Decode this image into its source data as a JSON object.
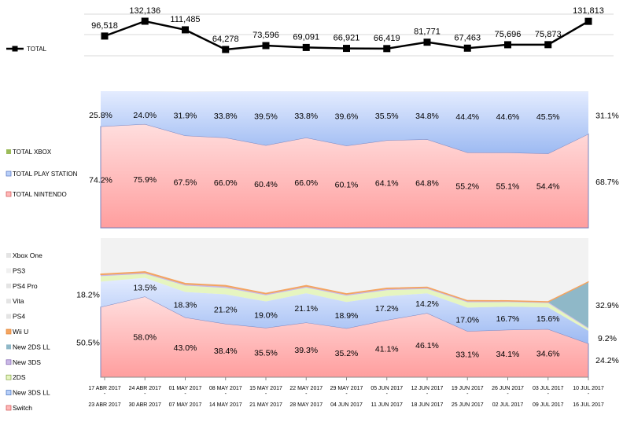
{
  "chart_data": [
    {
      "type": "line",
      "legend": [
        "TOTAL"
      ],
      "legend_placement": "left",
      "grid": true,
      "categories": [
        "17 ABR 2017 - 23 ABR 2017",
        "24 ABR 2017 - 30 ABR 2017",
        "01 MAY 2017 - 07 MAY 2017",
        "08 MAY 2017 - 14 MAY 2017",
        "15 MAY 2017 - 21 MAY 2017",
        "22 MAY 2017 - 28 MAY 2017",
        "29 MAY 2017 - 04 JUN 2017",
        "05 JUN 2017 - 11 JUN 2017",
        "12 JUN 2017 - 18 JUN 2017",
        "19 JUN 2017 - 25 JUN 2017",
        "26 JUN 2017 - 02 JUL 2017",
        "03 JUL 2017 - 09 JUL 2017",
        "10 JUL 2017 - 16 JUL 2017"
      ],
      "series": [
        {
          "name": "TOTAL",
          "values": [
            96518,
            132136,
            111485,
            64278,
            73596,
            69091,
            66921,
            66419,
            81771,
            67463,
            75696,
            75873,
            131813
          ],
          "labels": [
            "96,518",
            "132,136",
            "111,485",
            "64,278",
            "73,596",
            "69,091",
            "66,921",
            "66,419",
            "81,771",
            "67,463",
            "75,696",
            "75,873",
            "131,813"
          ],
          "color": "#000000"
        }
      ]
    },
    {
      "type": "area",
      "stacked": true,
      "unit": "%",
      "legend_placement": "left",
      "ylim": [
        0,
        100
      ],
      "series": [
        {
          "name": "TOTAL NINTENDO",
          "values": [
            74.2,
            75.9,
            67.5,
            66.0,
            60.4,
            66.0,
            60.1,
            64.1,
            64.8,
            55.2,
            55.1,
            54.4,
            68.7
          ],
          "color": "#ffb8b8"
        },
        {
          "name": "TOTAL PLAY STATION",
          "values": [
            25.8,
            24.0,
            31.9,
            33.8,
            39.5,
            33.8,
            39.6,
            35.5,
            34.8,
            44.4,
            44.6,
            45.5,
            31.1
          ],
          "color": "#b8cff8"
        },
        {
          "name": "TOTAL XBOX",
          "values": [
            0,
            0,
            0,
            0,
            0,
            0,
            0,
            0,
            0,
            0,
            0,
            0,
            0
          ],
          "color": "#9bbb59"
        }
      ]
    },
    {
      "type": "area",
      "stacked": true,
      "unit": "%",
      "legend_placement": "left",
      "ylim": [
        0,
        100
      ],
      "series": [
        {
          "name": "Switch",
          "values": [
            50.5,
            58.0,
            43.0,
            38.4,
            35.5,
            39.3,
            35.2,
            41.1,
            46.1,
            33.1,
            34.1,
            34.6,
            24.2
          ],
          "labeled": true,
          "color": "#ffb8b8"
        },
        {
          "name": "New 3DS LL",
          "values": [
            18.2,
            13.5,
            18.3,
            21.2,
            19.0,
            21.1,
            18.9,
            17.2,
            14.2,
            17.0,
            16.7,
            15.6,
            9.2
          ],
          "labeled": true,
          "color": "#b8cff8"
        },
        {
          "name": "2DS",
          "values": [
            4.0,
            2.8,
            4.6,
            4.6,
            4.4,
            4.0,
            4.5,
            4.3,
            3.2,
            3.8,
            3.2,
            3.1,
            1.5
          ],
          "color": "#e6f5c0"
        },
        {
          "name": "New 3DS",
          "values": [
            1.0,
            1.0,
            1.0,
            1.2,
            1.0,
            1.0,
            1.0,
            1.0,
            0.9,
            0.9,
            0.7,
            0.7,
            0.6
          ],
          "color": "#c9b8e6"
        },
        {
          "name": "New 2DS LL",
          "values": [
            0,
            0,
            0,
            0,
            0,
            0,
            0,
            0,
            0,
            0,
            0,
            0,
            32.9
          ],
          "labeled_last": true,
          "color": "#8fb8c8"
        },
        {
          "name": "Wii U",
          "values": [
            0.5,
            0.6,
            0.6,
            0.6,
            0.5,
            0.6,
            0.5,
            0.5,
            0.4,
            0.4,
            0.4,
            0.4,
            0.3
          ],
          "color": "#f4a460"
        },
        {
          "name": "PS4",
          "color": "#ececec"
        },
        {
          "name": "Vita",
          "color": "#efefef"
        },
        {
          "name": "PS4 Pro",
          "color": "#eeeeee"
        },
        {
          "name": "PS3",
          "color": "#f0f0f0"
        },
        {
          "name": "Xbox One",
          "color": "#f2f2f2"
        }
      ]
    }
  ],
  "xaxis": {
    "start": [
      "17 ABR 2017",
      "24 ABR 2017",
      "01 MAY 2017",
      "08 MAY 2017",
      "15 MAY 2017",
      "22 MAY 2017",
      "29 MAY 2017",
      "05 JUN 2017",
      "12 JUN 2017",
      "19 JUN 2017",
      "26 JUN 2017",
      "03 JUL 2017",
      "10 JUL 2017"
    ],
    "end": [
      "23 ABR 2017",
      "30 ABR 2017",
      "07 MAY 2017",
      "14 MAY 2017",
      "21 MAY 2017",
      "28 MAY 2017",
      "04 JUN 2017",
      "11 JUN 2017",
      "18 JUN 2017",
      "25 JUN 2017",
      "02 JUL 2017",
      "09 JUL 2017",
      "16 JUL 2017"
    ]
  }
}
